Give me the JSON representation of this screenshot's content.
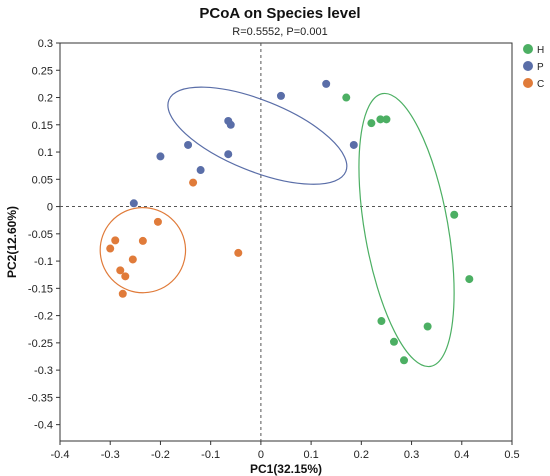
{
  "chart_data": {
    "type": "scatter",
    "title": "PCoA on Species level",
    "subtitle": "R=0.5552, P=0.001",
    "xlabel": "PC1(32.15%)",
    "ylabel": "PC2(12.60%)",
    "xlim": [
      -0.4,
      0.5
    ],
    "ylim": [
      -0.43,
      0.3
    ],
    "xticks": [
      -0.4,
      -0.3,
      -0.2,
      -0.1,
      0,
      0.1,
      0.2,
      0.3,
      0.4,
      0.5
    ],
    "yticks": [
      0.3,
      0.25,
      0.2,
      0.15,
      0.1,
      0.05,
      0,
      -0.05,
      -0.1,
      -0.15,
      -0.2,
      -0.25,
      -0.3,
      -0.35,
      -0.4
    ],
    "grid": false,
    "reference_lines": {
      "x": 0,
      "y": 0,
      "style": "dashed"
    },
    "legend_position": "top-right",
    "series": [
      {
        "name": "H",
        "color": "#4caf63",
        "points": [
          [
            0.17,
            0.2
          ],
          [
            0.22,
            0.153
          ],
          [
            0.238,
            0.16
          ],
          [
            0.25,
            0.16
          ],
          [
            0.385,
            -0.015
          ],
          [
            0.415,
            -0.133
          ],
          [
            0.24,
            -0.21
          ],
          [
            0.265,
            -0.248
          ],
          [
            0.332,
            -0.22
          ],
          [
            0.285,
            -0.282
          ]
        ],
        "ellipse": {
          "cx": 0.29,
          "cy": -0.043,
          "rx": 0.083,
          "ry": 0.254,
          "rotation_deg": -10
        }
      },
      {
        "name": "P",
        "color": "#5a6ea8",
        "points": [
          [
            0.04,
            0.203
          ],
          [
            0.13,
            0.225
          ],
          [
            -0.065,
            0.157
          ],
          [
            -0.06,
            0.15
          ],
          [
            -0.145,
            0.113
          ],
          [
            -0.2,
            0.092
          ],
          [
            -0.12,
            0.067
          ],
          [
            -0.065,
            0.096
          ],
          [
            0.185,
            0.113
          ],
          [
            -0.253,
            0.006
          ]
        ],
        "ellipse": {
          "cx": -0.007,
          "cy": 0.13,
          "rx": 0.19,
          "ry": 0.065,
          "rotation_deg": 22
        }
      },
      {
        "name": "C",
        "color": "#e07b3a",
        "points": [
          [
            -0.135,
            0.044
          ],
          [
            -0.205,
            -0.028
          ],
          [
            -0.235,
            -0.063
          ],
          [
            -0.29,
            -0.062
          ],
          [
            -0.3,
            -0.077
          ],
          [
            -0.255,
            -0.097
          ],
          [
            -0.28,
            -0.117
          ],
          [
            -0.27,
            -0.128
          ],
          [
            -0.275,
            -0.16
          ],
          [
            -0.045,
            -0.085
          ]
        ],
        "ellipse": {
          "cx": -0.235,
          "cy": -0.08,
          "rx": 0.085,
          "ry": 0.078,
          "rotation_deg": 20
        }
      }
    ]
  }
}
